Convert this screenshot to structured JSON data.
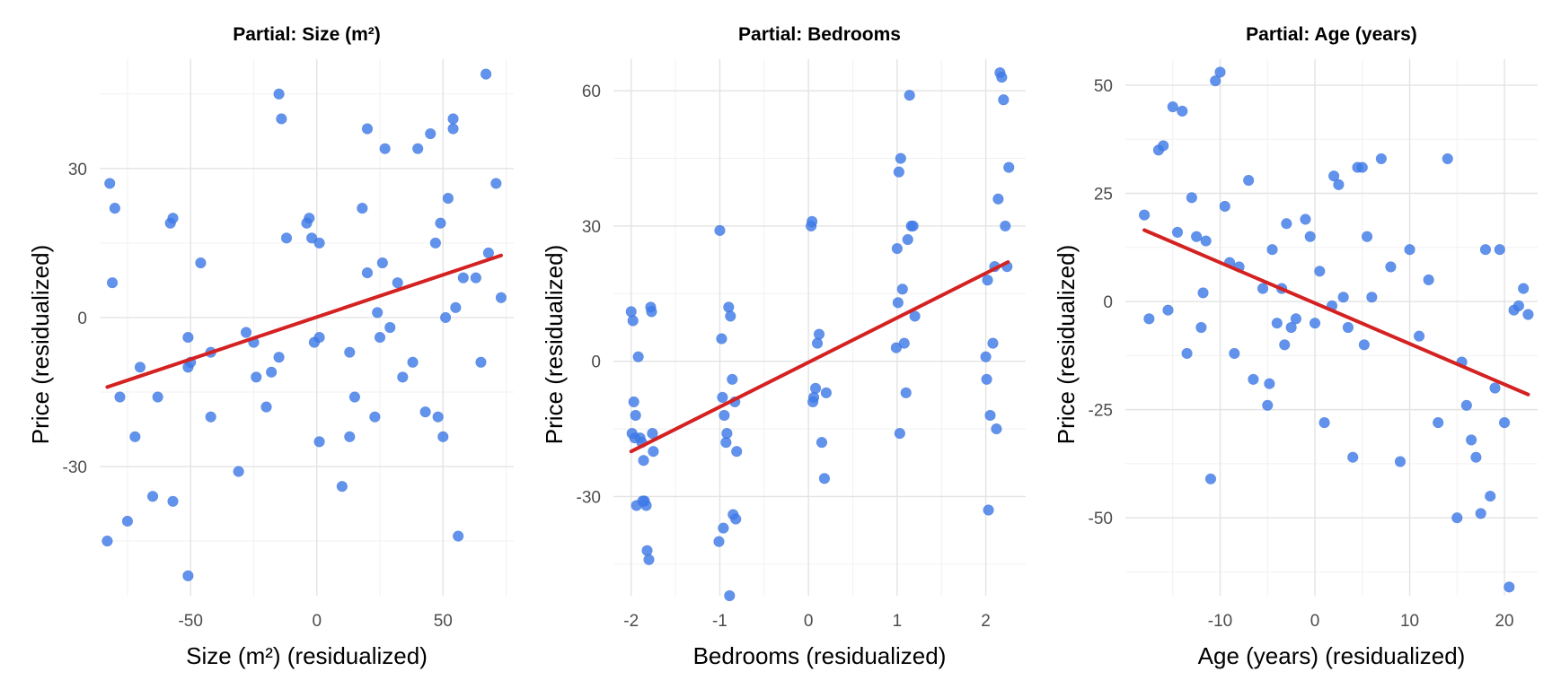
{
  "colors": {
    "point": "#3f7be8",
    "fit_line": "#d42222",
    "grid": "#e3e3e3"
  },
  "chart_data": [
    {
      "type": "scatter",
      "title": "Partial: Size (m²)",
      "xlabel": "Size (m²) (residualized)",
      "ylabel": "Price (residualized)",
      "xlim": [
        -86,
        78
      ],
      "ylim": [
        -56,
        52
      ],
      "xticks": [
        -50,
        0,
        50
      ],
      "yticks": [
        -30,
        0,
        30
      ],
      "grid": true,
      "fit_line": {
        "x": [
          -83,
          73
        ],
        "y": [
          -14,
          12.5
        ]
      },
      "x": [
        -82,
        -80,
        -81,
        -78,
        -83,
        -70,
        -72,
        -75,
        -63,
        -65,
        -58,
        -57,
        -57,
        -51,
        -51,
        -50,
        -51,
        -46,
        -42,
        -42,
        -31,
        -28,
        -25,
        -24,
        -20,
        -18,
        -15,
        -15,
        -14,
        -12,
        -3,
        -4,
        -2,
        1,
        -1,
        1,
        1,
        10,
        13,
        13,
        15,
        18,
        20,
        20,
        23,
        24,
        25,
        27,
        26,
        29,
        32,
        34,
        38,
        40,
        43,
        45,
        47,
        48,
        49,
        50,
        51,
        52,
        54,
        54,
        55,
        56,
        58,
        63,
        65,
        67,
        68,
        71,
        73
      ],
      "y": [
        27,
        22,
        7,
        -16,
        -45,
        -10,
        -24,
        -41,
        -16,
        -36,
        19,
        20,
        -37,
        -52,
        -10,
        -9,
        -4,
        11,
        -7,
        -20,
        -31,
        -3,
        -5,
        -12,
        -18,
        -11,
        -8,
        45,
        40,
        16,
        20,
        19,
        16,
        15,
        -5,
        -4,
        -25,
        -34,
        -7,
        -24,
        -16,
        22,
        38,
        9,
        -20,
        1,
        -4,
        34,
        11,
        -2,
        7,
        -12,
        -9,
        34,
        -19,
        37,
        15,
        -20,
        19,
        -24,
        0,
        24,
        40,
        38,
        2,
        -44,
        8,
        8,
        -9,
        49,
        13,
        27,
        4
      ]
    },
    {
      "type": "scatter",
      "title": "Partial: Bedrooms",
      "xlabel": "Bedrooms (residualized)",
      "ylabel": "Price (residualized)",
      "xlim": [
        -2.2,
        2.45
      ],
      "ylim": [
        -52,
        67
      ],
      "xticks": [
        -2,
        -1,
        0,
        1,
        2
      ],
      "yticks": [
        -30,
        0,
        30,
        60
      ],
      "grid": true,
      "fit_line": {
        "x": [
          -2.0,
          2.25
        ],
        "y": [
          -20,
          22
        ]
      },
      "x": [
        -2.0,
        -1.98,
        -1.97,
        -1.95,
        -1.9,
        -1.88,
        -1.86,
        -1.85,
        -1.83,
        -1.82,
        -1.8,
        -1.78,
        -1.77,
        -1.76,
        -1.75,
        -1.92,
        -1.96,
        -1.99,
        -1.94,
        -1.87,
        -1.0,
        -0.98,
        -0.97,
        -0.95,
        -0.93,
        -0.92,
        -0.9,
        -0.88,
        -0.86,
        -0.85,
        -0.83,
        -0.82,
        -0.81,
        -1.01,
        -0.96,
        -0.89,
        0.03,
        0.04,
        0.06,
        0.08,
        0.1,
        0.12,
        0.15,
        0.18,
        0.2,
        0.05,
        0.99,
        1.0,
        1.02,
        1.04,
        1.06,
        1.08,
        1.1,
        1.12,
        1.14,
        1.16,
        1.18,
        1.2,
        1.03,
        1.01,
        2.0,
        2.02,
        2.05,
        2.08,
        2.1,
        2.12,
        2.14,
        2.16,
        2.18,
        2.2,
        2.22,
        2.24,
        2.26,
        2.01,
        2.03
      ],
      "y": [
        11,
        9,
        -9,
        -12,
        -17,
        -18,
        -22,
        -31,
        -32,
        -42,
        -44,
        12,
        11,
        -16,
        -20,
        1,
        -17,
        -16,
        -32,
        -31,
        29,
        5,
        -8,
        -12,
        -18,
        -16,
        12,
        10,
        -4,
        -34,
        -9,
        -35,
        -20,
        -40,
        -37,
        -52,
        30,
        31,
        -8,
        -6,
        4,
        6,
        -18,
        -26,
        -7,
        -9,
        3,
        25,
        42,
        45,
        16,
        4,
        -7,
        27,
        59,
        30,
        30,
        10,
        -16,
        13,
        1,
        18,
        -12,
        4,
        21,
        -15,
        36,
        64,
        63,
        58,
        30,
        21,
        43,
        -4,
        -33
      ]
    },
    {
      "type": "scatter",
      "title": "Partial: Age (years)",
      "xlabel": "Age (years) (residualized)",
      "ylabel": "Price (residualized)",
      "xlim": [
        -20,
        23.5
      ],
      "ylim": [
        -68,
        56
      ],
      "xticks": [
        -10,
        0,
        10,
        20
      ],
      "yticks": [
        -50,
        -25,
        0,
        25,
        50
      ],
      "grid": true,
      "fit_line": {
        "x": [
          -18,
          22.5
        ],
        "y": [
          16.5,
          -21.5
        ]
      },
      "x": [
        -18,
        -17.5,
        -16.5,
        -16,
        -15.5,
        -15,
        -14.5,
        -14,
        -13.5,
        -12.5,
        -12,
        -11.5,
        -11,
        -10.5,
        -10,
        -9.5,
        -9,
        -8,
        -7,
        -6.5,
        -5.5,
        -5,
        -4.5,
        -4,
        -3.5,
        -3,
        -2,
        -1,
        -0.5,
        0,
        0.5,
        1,
        2,
        2.5,
        3,
        3.5,
        4,
        4.5,
        5,
        5.5,
        6,
        7,
        8,
        9,
        10,
        11,
        12,
        13,
        14,
        15,
        15.5,
        16,
        16.5,
        17,
        17.5,
        18,
        18.5,
        19,
        19.5,
        20,
        20.5,
        21,
        21.5,
        22,
        22.5,
        -8.5,
        -13,
        -4.8,
        -3.2,
        1.8,
        5.2,
        -11.8,
        -2.5
      ],
      "y": [
        20,
        -4,
        35,
        36,
        -2,
        45,
        16,
        44,
        -12,
        15,
        -6,
        14,
        -41,
        51,
        53,
        22,
        9,
        8,
        28,
        -18,
        3,
        -24,
        12,
        -5,
        3,
        18,
        -4,
        19,
        15,
        -5,
        7,
        -28,
        29,
        27,
        1,
        -6,
        -36,
        31,
        31,
        15,
        1,
        33,
        8,
        -37,
        12,
        -8,
        5,
        -28,
        33,
        -50,
        -14,
        -24,
        -32,
        -36,
        -49,
        12,
        -45,
        -20,
        12,
        -28,
        -66,
        -2,
        -1,
        3,
        -3,
        -12,
        24,
        -19,
        -10,
        -1,
        -10,
        2,
        -6
      ]
    }
  ]
}
